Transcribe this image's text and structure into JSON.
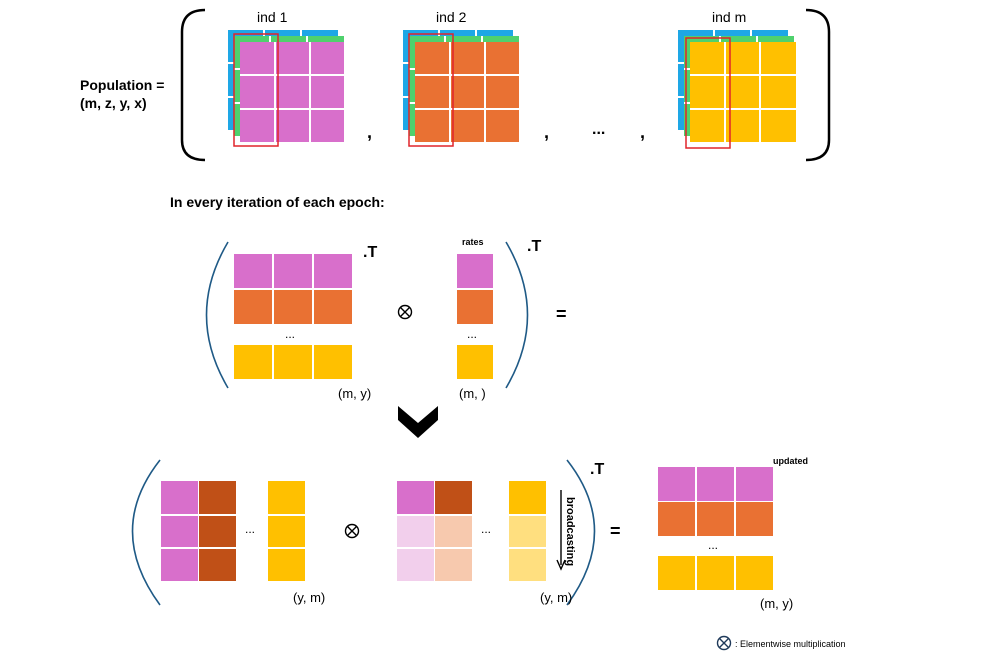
{
  "population": {
    "label_line1": "Population =",
    "label_line2": "(m, z, y, x)",
    "individuals": [
      {
        "label": "ind 1",
        "color": "#d86fcb"
      },
      {
        "label": "ind 2",
        "color": "#e97133"
      },
      {
        "label": "ind m",
        "color": "#ffc000"
      }
    ],
    "separator_comma": ",",
    "ellipsis": "..."
  },
  "iteration": {
    "heading": "In every iteration of each epoch:",
    "transpose_label": ".T",
    "rates_label": "rates",
    "matrix_ellipsis": "...",
    "left_shape": "(m, y)",
    "right_shape": "(m, )",
    "equals": "="
  },
  "result": {
    "transpose_label": ".T",
    "broadcasting_label": "broadcasting",
    "left_shape": "(y, m)",
    "right_shape": "(y, m)",
    "updated_label": "updated",
    "updated_shape": "(m, y)",
    "col_ellipsis": "...",
    "row_ellipsis": "...",
    "equals": "="
  },
  "legend": {
    "text": ": Elementwise multiplication"
  },
  "colors": {
    "pink": "#d86fcb",
    "orange": "#e97133",
    "yellow": "#ffc000",
    "dark_orange": "#c05017",
    "light_pink": "#f2cfec",
    "light_orange": "#f7c9ae",
    "light_yellow": "#ffdf7f",
    "blue_layer": "#1ea7e6",
    "green_layer": "#4fd16d",
    "bracket_blue": "#1f5a86",
    "highlight_red": "#e0242a"
  }
}
